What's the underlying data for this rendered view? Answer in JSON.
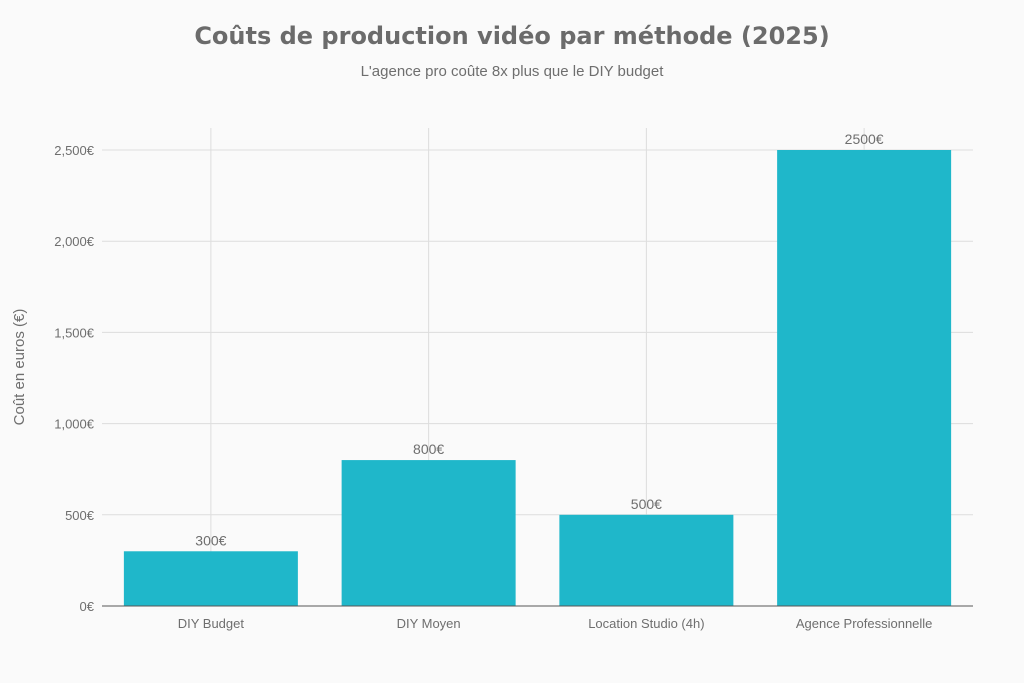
{
  "chart_data": {
    "type": "bar",
    "title": "Coûts de production vidéo par méthode (2025)",
    "subtitle": "L'agence pro coûte 8x plus que le DIY budget",
    "xlabel": "",
    "ylabel": "Coût en euros (€)",
    "categories": [
      "DIY Budget",
      "DIY Moyen",
      "Location Studio (4h)",
      "Agence Professionnelle"
    ],
    "values": [
      300,
      800,
      500,
      2500
    ],
    "data_labels": [
      "300€",
      "800€",
      "500€",
      "2500€"
    ],
    "ylim": [
      0,
      2630
    ],
    "yticks": [
      0,
      500,
      1000,
      1500,
      2000,
      2500
    ],
    "ytick_labels": [
      "0€",
      "500€",
      "1,000€",
      "1,500€",
      "2,000€",
      "2,500€"
    ],
    "grid": true,
    "legend": "none",
    "colors": {
      "bar": "#1fb7ca",
      "background": "#fafafa",
      "grid": "#dddddd",
      "text": "#6e6e6e"
    }
  }
}
